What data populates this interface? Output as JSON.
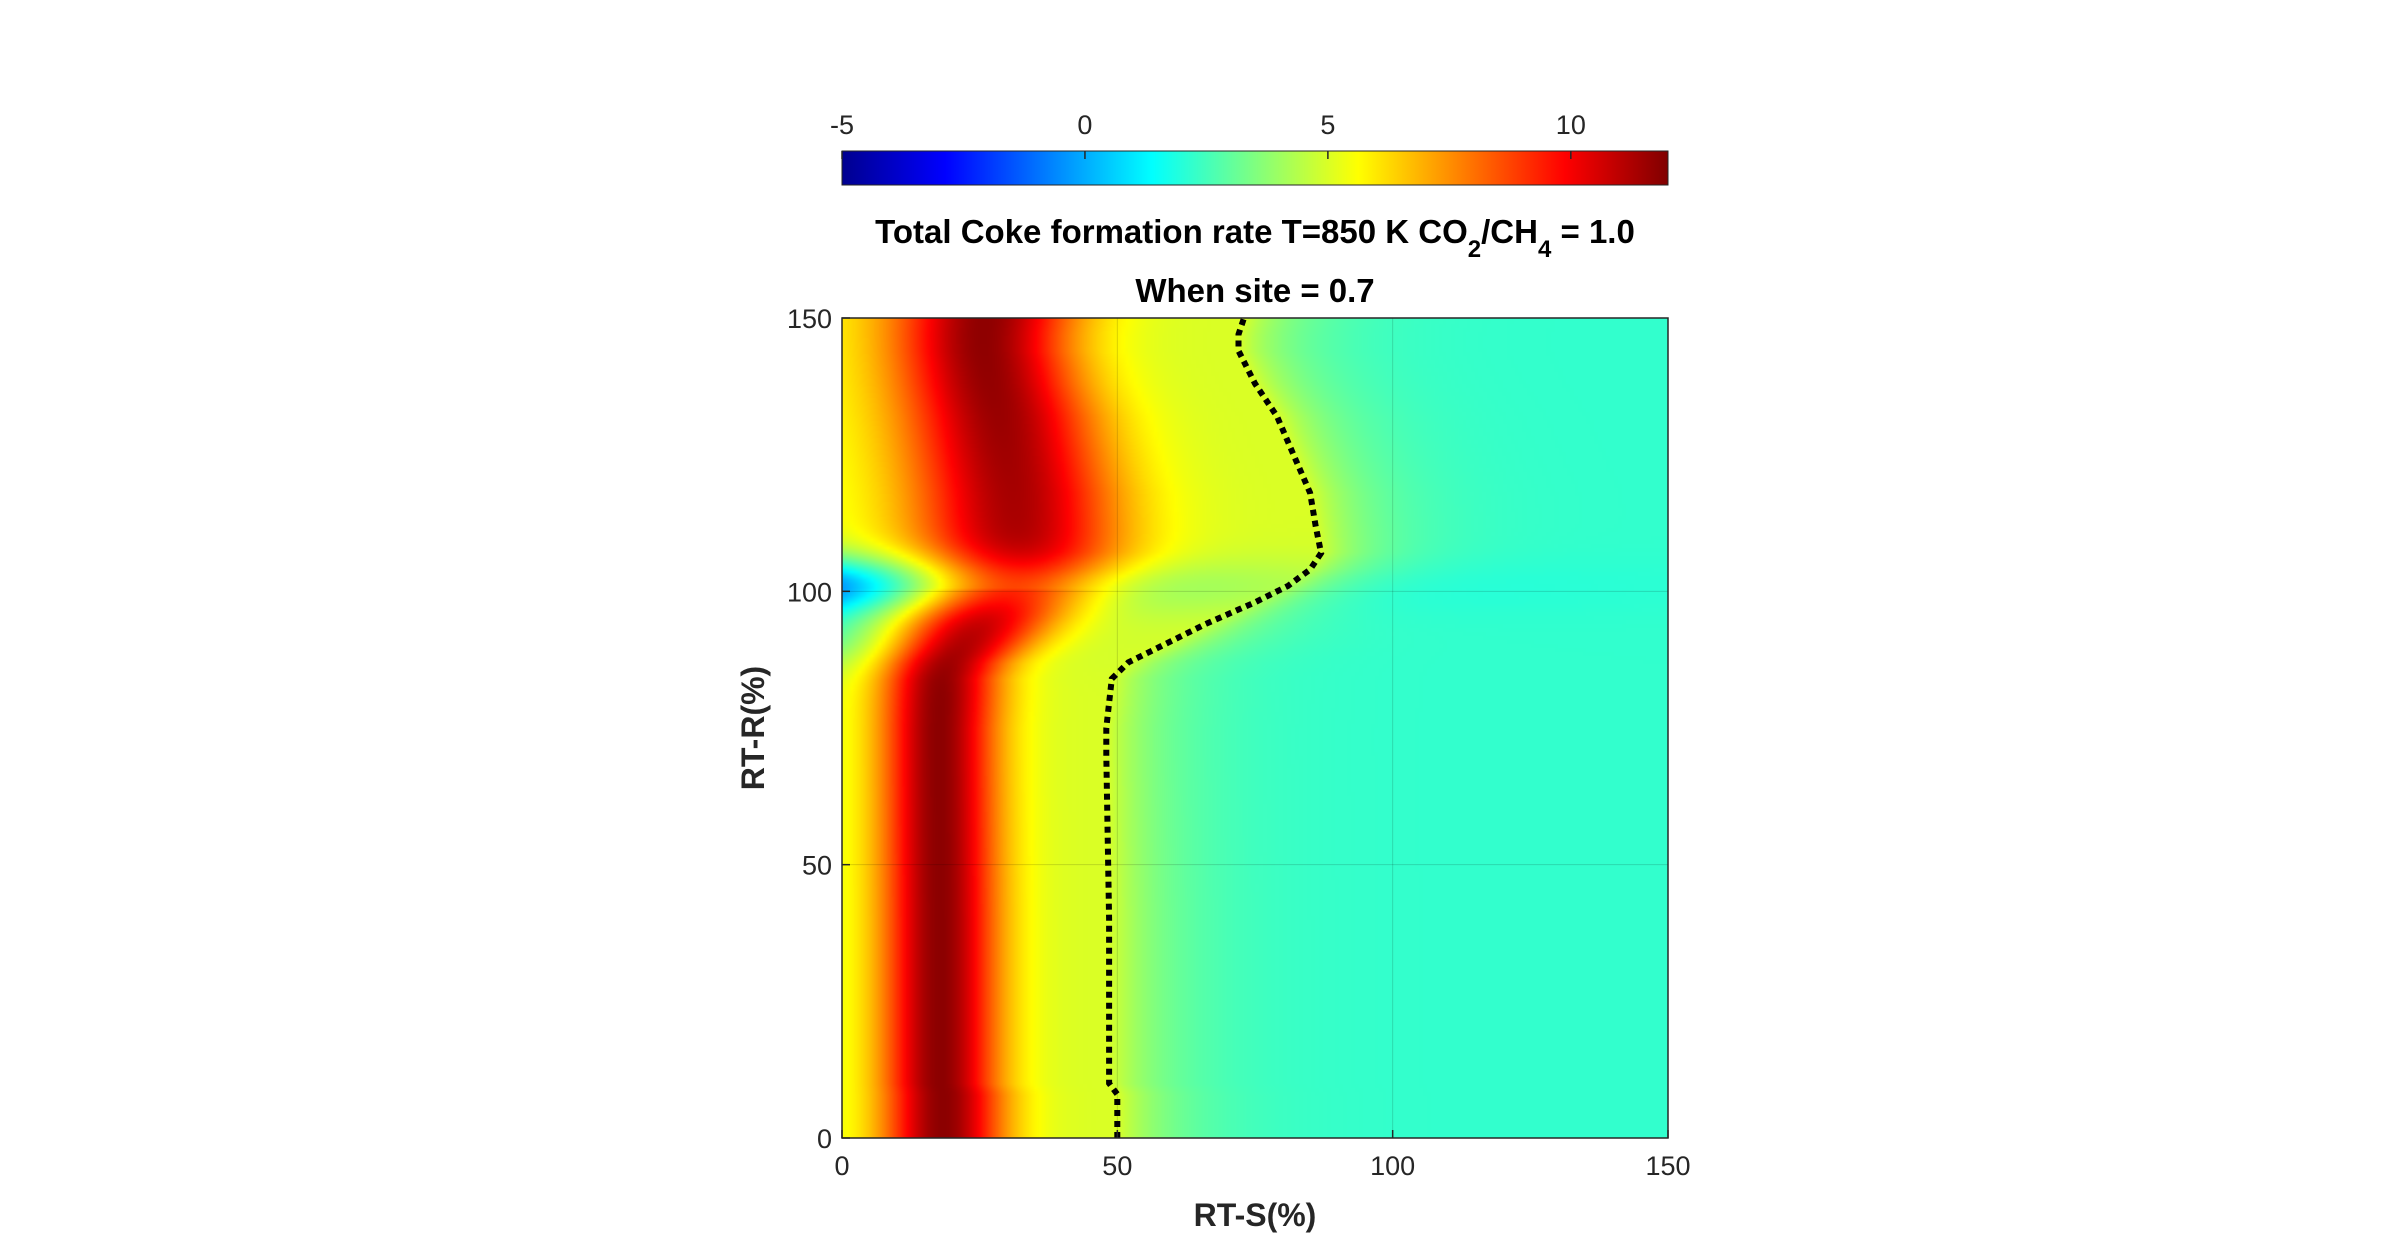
{
  "chart_data": {
    "type": "heatmap",
    "title_parts": [
      "Total Coke formation rate T=850 K CO",
      "2",
      "/CH",
      "4",
      " = 1.0"
    ],
    "subtitle": "When site = 0.7",
    "xlabel": "RT-S(%)",
    "ylabel": "RT-R(%)",
    "xlim": [
      0,
      150
    ],
    "ylim": [
      0,
      150
    ],
    "x_ticks": [
      "0",
      "50",
      "100",
      "150"
    ],
    "y_ticks": [
      "0",
      "50",
      "100",
      "150"
    ],
    "grid": true,
    "colormap": "jet",
    "colorbar": {
      "location": "top",
      "range": [
        -5,
        12
      ],
      "tick_labels": [
        "-5",
        "0",
        "5",
        "10"
      ],
      "tick_values": [
        -5,
        0,
        5,
        10
      ]
    },
    "field_note": "Total coke formation rate as a function of RT-S (x) and RT-R (y); approx. 11–12 near x≈15–20 for y<90, ~5 near x≈45–50, ~2 (background) for x>65; at y≈100 the high region shifts, contour extends to x≈87 near y≈107.",
    "contour": {
      "style": "dotted",
      "color": "#000000",
      "points": [
        [
          50,
          0
        ],
        [
          50,
          8
        ],
        [
          48.5,
          10
        ],
        [
          48.5,
          40
        ],
        [
          48,
          70
        ],
        [
          48,
          75
        ],
        [
          49,
          84
        ],
        [
          52,
          87
        ],
        [
          58,
          90
        ],
        [
          66,
          94
        ],
        [
          75,
          98
        ],
        [
          81,
          101
        ],
        [
          85,
          104
        ],
        [
          87,
          107
        ],
        [
          86,
          112
        ],
        [
          85,
          118
        ],
        [
          82,
          125
        ],
        [
          79,
          132
        ],
        [
          75,
          138
        ],
        [
          72,
          144
        ],
        [
          72,
          147
        ],
        [
          73,
          150
        ]
      ]
    }
  }
}
